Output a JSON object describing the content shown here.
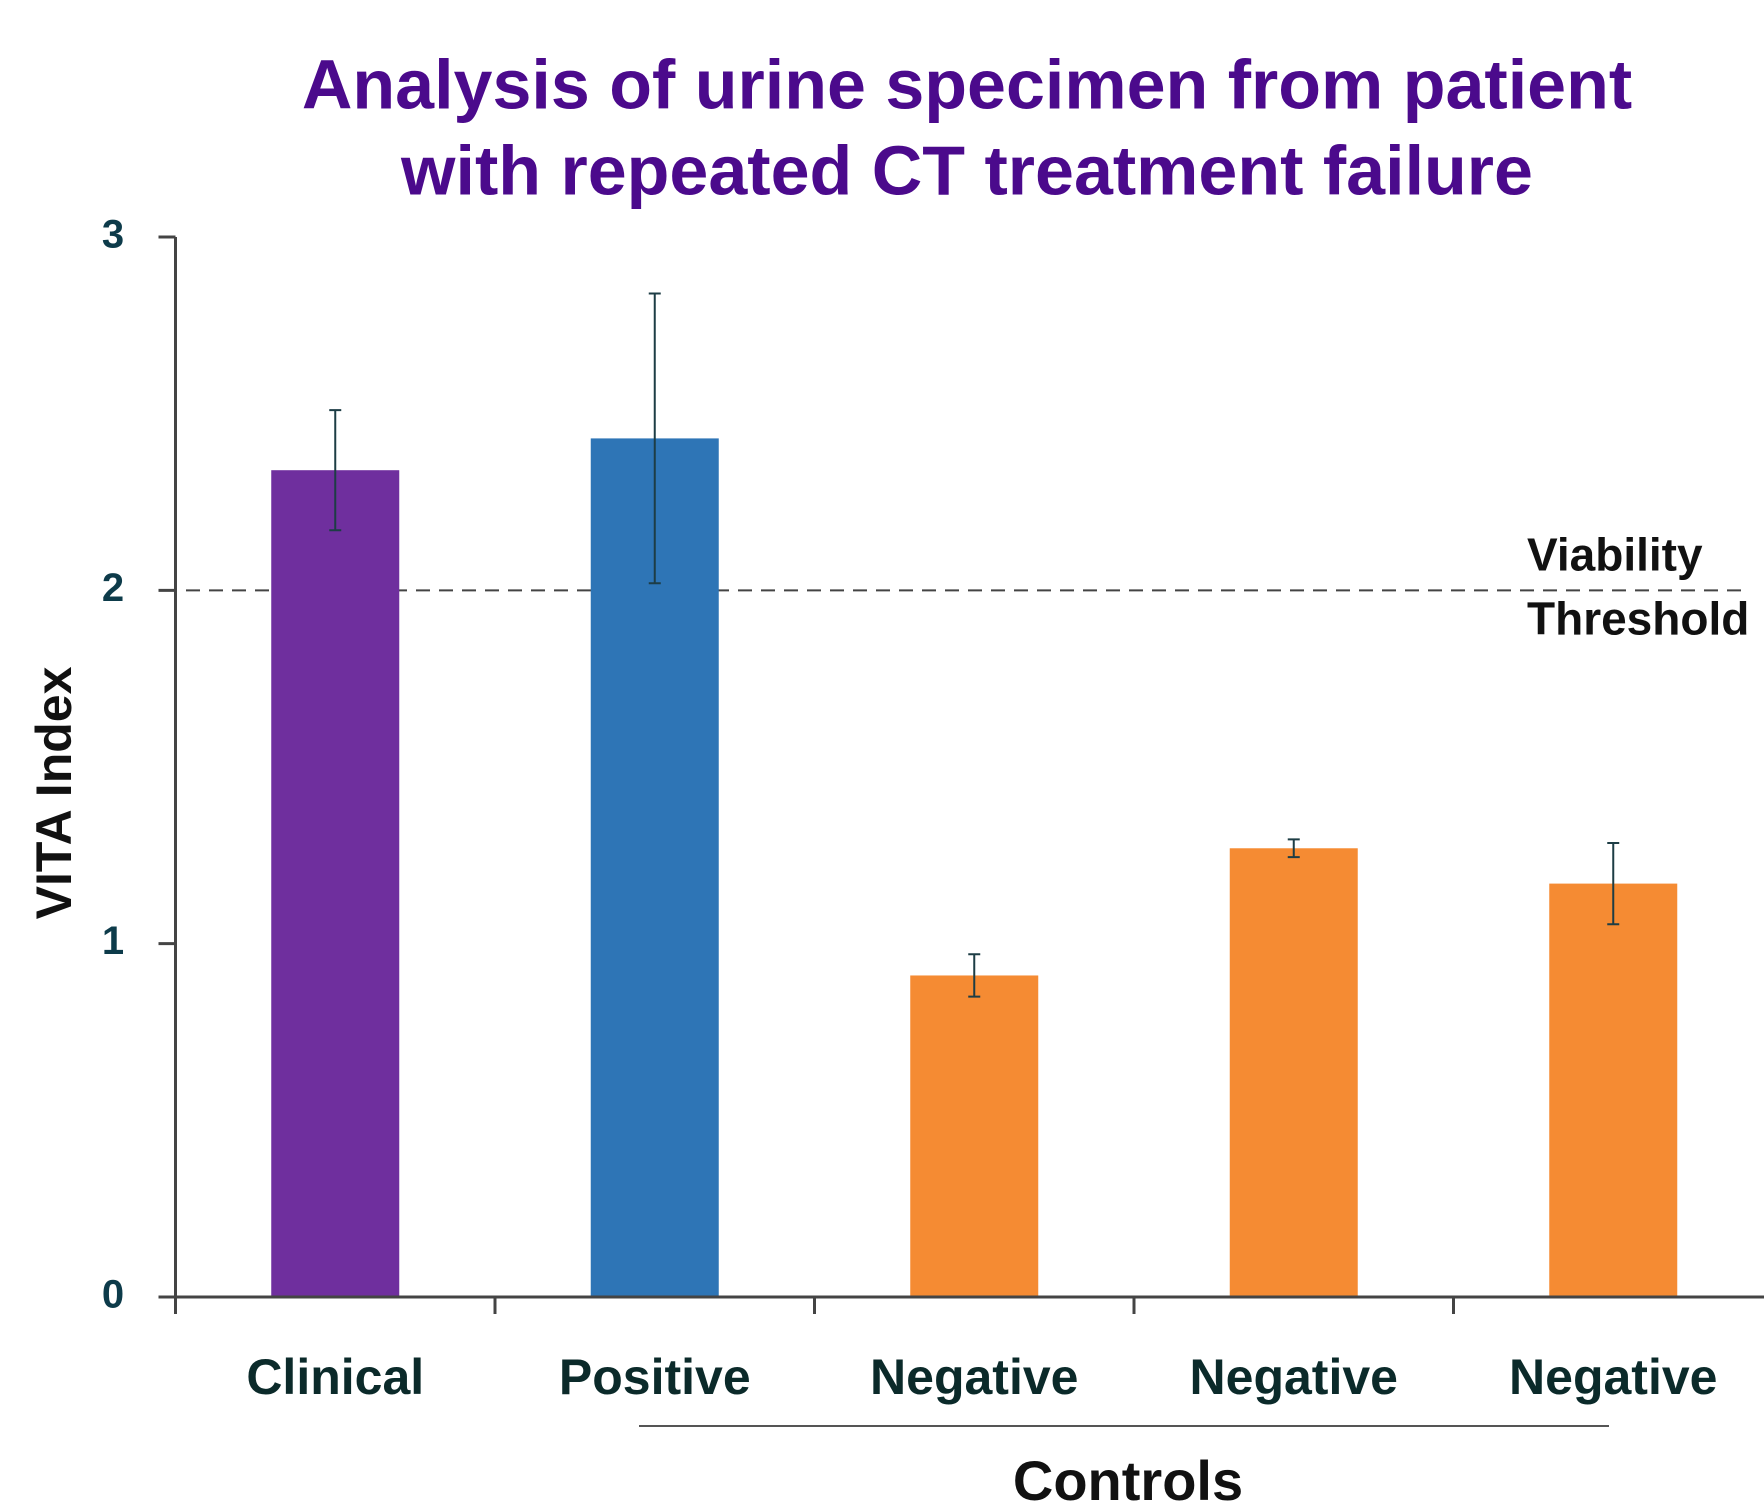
{
  "chart_data": {
    "type": "bar",
    "title": [
      "Analysis of urine specimen from patient",
      "with repeated CT treatment failure"
    ],
    "y_label": "VITA Index",
    "categories": [
      "Clinical",
      "Positive",
      "Negative",
      "Negative",
      "Negative"
    ],
    "values": [
      2.34,
      2.43,
      0.91,
      1.27,
      1.17
    ],
    "errors": [
      0.17,
      0.41,
      0.06,
      0.025,
      0.115
    ],
    "colors": [
      "#6f2f9e",
      "#2e75b6",
      "#f58b33",
      "#f58b33",
      "#f58b33"
    ],
    "ylim": [
      0,
      3
    ],
    "yticks": [
      0,
      1,
      2,
      3
    ],
    "threshold": {
      "value": 2,
      "label": [
        "Viability",
        "Threshold"
      ]
    },
    "group_label": "Controls"
  }
}
